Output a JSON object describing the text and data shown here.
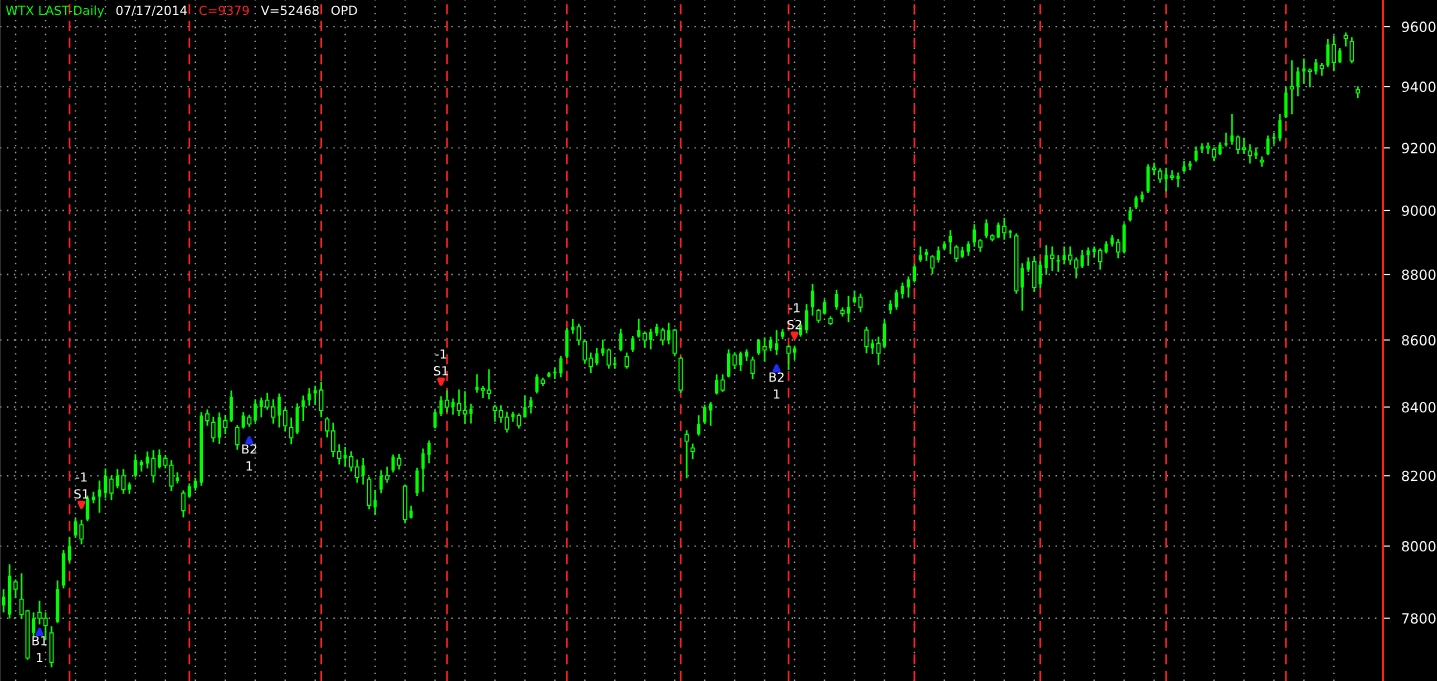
{
  "chart_data": {
    "type": "candlestick",
    "title": "WTX LAST-Daily",
    "annotations": [
      "07/17/2014",
      "C=9379",
      "V=52468",
      "OPD",
      {
        "text": "B1\n1",
        "y": 7790
      },
      {
        "text": "-1\nS1",
        "y": 8088
      },
      {
        "text": "B2\n1",
        "y": 8332
      },
      {
        "text": "-1\nS1",
        "y": 8445
      },
      {
        "text": "B2\n1",
        "y": 8545
      },
      {
        "text": "-1\nS2",
        "y": 8583
      }
    ],
    "categories": [
      null,
      null,
      null,
      null,
      null,
      null,
      null,
      null,
      null,
      null,
      null,
      null,
      null,
      null,
      null,
      null,
      null,
      null,
      null,
      null,
      null,
      null,
      null,
      null,
      null,
      null,
      null,
      null,
      null,
      null,
      null,
      null,
      null,
      null,
      null,
      null,
      null,
      null,
      null,
      null,
      null,
      null,
      null,
      null,
      null,
      null,
      null,
      null,
      null,
      null,
      null,
      null,
      null,
      null,
      null,
      null,
      null,
      null,
      null,
      null,
      null,
      null,
      null,
      null,
      null,
      null,
      null,
      null,
      null,
      null,
      null,
      null,
      null,
      null,
      null,
      null,
      null,
      null,
      null,
      null,
      null,
      null,
      null,
      null,
      null,
      null,
      null,
      null,
      null,
      null,
      null,
      null,
      null,
      null,
      null,
      null,
      null,
      null,
      null,
      null,
      null,
      null,
      null,
      null,
      null,
      null,
      null,
      null,
      null,
      null,
      null,
      null,
      null,
      null,
      null,
      null,
      null,
      null,
      null,
      null,
      null,
      null,
      null,
      null,
      null,
      null,
      null,
      null,
      null,
      null,
      null,
      null,
      null,
      null,
      null,
      null,
      null,
      null,
      null,
      null,
      null,
      null,
      null,
      null,
      null,
      null,
      null,
      null,
      null,
      null,
      null,
      null,
      null,
      null,
      null,
      null,
      null,
      null,
      null,
      null,
      null,
      null,
      null,
      null,
      null,
      null,
      null,
      null,
      null,
      null,
      null,
      null,
      null,
      null,
      null,
      null,
      null,
      null,
      null,
      null,
      null,
      null,
      null,
      null,
      null,
      null,
      null,
      null,
      null,
      null,
      null,
      null,
      null,
      null,
      null,
      null,
      null,
      null,
      null,
      null,
      null,
      null,
      null,
      null,
      null,
      null,
      null,
      null,
      null,
      null,
      null,
      null,
      null,
      null,
      null,
      null,
      null,
      null,
      null,
      null,
      null,
      null,
      null,
      null,
      null,
      null,
      null
    ],
    "color": "#00ff00",
    "ohlc": [
      [
        7835,
        7880,
        7816,
        7859
      ],
      [
        7810,
        7949,
        7799,
        7917
      ],
      [
        7900,
        7907,
        7855,
        7880
      ],
      [
        7852,
        7924,
        7799,
        7810
      ],
      [
        7820,
        7823,
        7687,
        7692
      ],
      [
        7760,
        7816,
        7750,
        7800
      ],
      [
        7816,
        7848,
        7783,
        7800
      ],
      [
        7800,
        7816,
        7740,
        7780
      ],
      [
        7760,
        7778,
        7667,
        7680
      ],
      [
        7790,
        7904,
        7787,
        7880
      ],
      [
        7890,
        7989,
        7882,
        7980
      ],
      [
        7960,
        8026,
        7954,
        8000
      ],
      [
        8030,
        8081,
        8023,
        8070
      ],
      [
        8060,
        8074,
        8005,
        8020
      ],
      [
        8075,
        8143,
        8070,
        8135
      ],
      [
        8130,
        8154,
        8121,
        8140
      ],
      [
        8140,
        8186,
        8094,
        8160
      ],
      [
        8150,
        8221,
        8135,
        8200
      ],
      [
        8190,
        8200,
        8130,
        8150
      ],
      [
        8170,
        8219,
        8164,
        8200
      ],
      [
        8200,
        8219,
        8148,
        8160
      ],
      [
        8160,
        8181,
        8148,
        8175
      ],
      [
        8200,
        8262,
        8195,
        8245
      ],
      [
        8230,
        8245,
        8212,
        8240
      ],
      [
        8235,
        8270,
        8221,
        8255
      ],
      [
        8250,
        8274,
        8180,
        8200
      ],
      [
        8225,
        8276,
        8221,
        8260
      ],
      [
        8250,
        8260,
        8221,
        8230
      ],
      [
        8230,
        8245,
        8156,
        8170
      ],
      [
        8185,
        8210,
        8178,
        8195
      ],
      [
        8150,
        8158,
        8081,
        8100
      ],
      [
        8140,
        8178,
        8137,
        8170
      ],
      [
        8165,
        8194,
        8157,
        8185
      ],
      [
        8180,
        8385,
        8171,
        8375
      ],
      [
        8380,
        8393,
        8345,
        8360
      ],
      [
        8355,
        8371,
        8297,
        8310
      ],
      [
        8310,
        8384,
        8292,
        8370
      ],
      [
        8360,
        8377,
        8321,
        8340
      ],
      [
        8360,
        8449,
        8356,
        8430
      ],
      [
        8340,
        8347,
        8275,
        8290
      ],
      [
        8340,
        8385,
        8337,
        8375
      ],
      [
        8370,
        8377,
        8342,
        8350
      ],
      [
        8360,
        8423,
        8354,
        8410
      ],
      [
        8400,
        8428,
        8370,
        8420
      ],
      [
        8420,
        8442,
        8392,
        8400
      ],
      [
        8400,
        8423,
        8351,
        8370
      ],
      [
        8375,
        8440,
        8340,
        8430
      ],
      [
        8390,
        8399,
        8328,
        8345
      ],
      [
        8340,
        8369,
        8291,
        8310
      ],
      [
        8325,
        8411,
        8321,
        8400
      ],
      [
        8400,
        8434,
        8359,
        8420
      ],
      [
        8420,
        8456,
        8404,
        8440
      ],
      [
        8440,
        8463,
        8406,
        8450
      ],
      [
        8450,
        8475,
        8370,
        8390
      ],
      [
        8365,
        8370,
        8311,
        8330
      ],
      [
        8330,
        8354,
        8254,
        8270
      ],
      [
        8270,
        8291,
        8232,
        8250
      ],
      [
        8250,
        8283,
        8226,
        8260
      ],
      [
        8255,
        8271,
        8212,
        8225
      ],
      [
        8225,
        8247,
        8180,
        8195
      ],
      [
        8200,
        8251,
        8175,
        8230
      ],
      [
        8190,
        8196,
        8104,
        8115
      ],
      [
        8110,
        8159,
        8088,
        8130
      ],
      [
        8160,
        8216,
        8150,
        8200
      ],
      [
        8200,
        8226,
        8180,
        8190
      ],
      [
        8215,
        8261,
        8209,
        8255
      ],
      [
        8250,
        8263,
        8218,
        8230
      ],
      [
        8170,
        8175,
        8064,
        8075
      ],
      [
        8080,
        8114,
        8078,
        8100
      ],
      [
        8150,
        8223,
        8142,
        8215
      ],
      [
        8220,
        8279,
        8154,
        8265
      ],
      [
        8260,
        8302,
        8236,
        8295
      ],
      [
        8340,
        8392,
        8337,
        8385
      ],
      [
        8380,
        8432,
        8374,
        8420
      ],
      [
        8420,
        8450,
        8385,
        8400
      ],
      [
        8400,
        8425,
        8377,
        8415
      ],
      [
        8410,
        8452,
        8374,
        8390
      ],
      [
        8390,
        8447,
        8352,
        8380
      ],
      [
        8380,
        8410,
        8352,
        8395
      ],
      [
        8450,
        8497,
        8442,
        8460
      ],
      [
        8455,
        8462,
        8427,
        8450
      ],
      [
        8450,
        8512,
        8423,
        8440
      ],
      [
        8400,
        8407,
        8357,
        8390
      ],
      [
        8390,
        8405,
        8354,
        8370
      ],
      [
        8370,
        8386,
        8325,
        8335
      ],
      [
        8370,
        8386,
        8357,
        8380
      ],
      [
        8375,
        8381,
        8337,
        8345
      ],
      [
        8370,
        8433,
        8369,
        8400
      ],
      [
        8400,
        8430,
        8381,
        8420
      ],
      [
        8445,
        8497,
        8440,
        8490
      ],
      [
        8480,
        8487,
        8462,
        8470
      ],
      [
        8490,
        8504,
        8488,
        8500
      ],
      [
        8500,
        8516,
        8483,
        8505
      ],
      [
        8500,
        8552,
        8488,
        8545
      ],
      [
        8550,
        8636,
        8546,
        8630
      ],
      [
        8630,
        8664,
        8619,
        8640
      ],
      [
        8640,
        8649,
        8584,
        8600
      ],
      [
        8595,
        8599,
        8529,
        8540
      ],
      [
        8545,
        8562,
        8501,
        8520
      ],
      [
        8530,
        8576,
        8524,
        8560
      ],
      [
        8560,
        8601,
        8552,
        8575
      ],
      [
        8570,
        8574,
        8514,
        8525
      ],
      [
        8525,
        8549,
        8514,
        8530
      ],
      [
        8570,
        8634,
        8566,
        8620
      ],
      [
        8550,
        8562,
        8514,
        8520
      ],
      [
        8570,
        8612,
        8564,
        8605
      ],
      [
        8610,
        8664,
        8607,
        8630
      ],
      [
        8620,
        8626,
        8577,
        8600
      ],
      [
        8600,
        8634,
        8572,
        8625
      ],
      [
        8620,
        8649,
        8612,
        8640
      ],
      [
        8630,
        8637,
        8584,
        8600
      ],
      [
        8600,
        8652,
        8587,
        8630
      ],
      [
        8630,
        8633,
        8551,
        8560
      ],
      [
        8545,
        8550,
        8442,
        8450
      ],
      [
        8320,
        8332,
        8193,
        8300
      ],
      [
        8280,
        8293,
        8248,
        8270
      ],
      [
        8320,
        8376,
        8316,
        8350
      ],
      [
        8355,
        8407,
        8350,
        8400
      ],
      [
        8390,
        8415,
        8345,
        8410
      ],
      [
        8440,
        8497,
        8437,
        8480
      ],
      [
        8480,
        8497,
        8445,
        8450
      ],
      [
        8490,
        8572,
        8488,
        8560
      ],
      [
        8555,
        8563,
        8513,
        8525
      ],
      [
        8525,
        8565,
        8507,
        8560
      ],
      [
        8550,
        8572,
        8537,
        8565
      ],
      [
        8540,
        8550,
        8483,
        8500
      ],
      [
        8560,
        8603,
        8555,
        8600
      ],
      [
        8580,
        8608,
        8535,
        8570
      ],
      [
        8575,
        8610,
        8567,
        8600
      ],
      [
        8570,
        8630,
        8555,
        8590
      ],
      [
        8610,
        8633,
        8603,
        8625
      ],
      [
        8580,
        8585,
        8510,
        8560
      ],
      [
        8562,
        8583,
        8540,
        8575
      ],
      [
        8615,
        8650,
        8610,
        8645
      ],
      [
        8630,
        8709,
        8620,
        8690
      ],
      [
        8700,
        8771,
        8674,
        8750
      ],
      [
        8690,
        8694,
        8652,
        8660
      ],
      [
        8680,
        8724,
        8677,
        8715
      ],
      [
        8665,
        8672,
        8645,
        8650
      ],
      [
        8700,
        8753,
        8692,
        8740
      ],
      [
        8690,
        8699,
        8671,
        8680
      ],
      [
        8680,
        8734,
        8654,
        8700
      ],
      [
        8715,
        8750,
        8711,
        8730
      ],
      [
        8730,
        8741,
        8684,
        8700
      ],
      [
        8630,
        8640,
        8560,
        8580
      ],
      [
        8575,
        8602,
        8558,
        8590
      ],
      [
        8590,
        8610,
        8525,
        8560
      ],
      [
        8580,
        8661,
        8575,
        8650
      ],
      [
        8690,
        8721,
        8679,
        8710
      ],
      [
        8700,
        8753,
        8692,
        8745
      ],
      [
        8740,
        8775,
        8726,
        8765
      ],
      [
        8760,
        8794,
        8729,
        8785
      ],
      [
        8780,
        8832,
        8775,
        8825
      ],
      [
        8845,
        8887,
        8839,
        8860
      ],
      [
        8860,
        8879,
        8842,
        8870
      ],
      [
        8855,
        8860,
        8801,
        8820
      ],
      [
        8845,
        8887,
        8837,
        8875
      ],
      [
        8880,
        8903,
        8877,
        8895
      ],
      [
        8900,
        8938,
        8863,
        8920
      ],
      [
        8885,
        8891,
        8839,
        8850
      ],
      [
        8855,
        8886,
        8851,
        8875
      ],
      [
        8870,
        8903,
        8858,
        8895
      ],
      [
        8900,
        8957,
        8886,
        8940
      ],
      [
        8905,
        8910,
        8870,
        8885
      ],
      [
        8920,
        8972,
        8913,
        8960
      ],
      [
        8920,
        8925,
        8903,
        8910
      ],
      [
        8915,
        8962,
        8913,
        8955
      ],
      [
        8950,
        8977,
        8908,
        8930
      ],
      [
        8930,
        8939,
        8913,
        8935
      ],
      [
        8920,
        8928,
        8741,
        8750
      ],
      [
        8760,
        8835,
        8689,
        8820
      ],
      [
        8815,
        8853,
        8808,
        8840
      ],
      [
        8840,
        8855,
        8747,
        8760
      ],
      [
        8770,
        8842,
        8758,
        8830
      ],
      [
        8820,
        8891,
        8799,
        8860
      ],
      [
        8860,
        8887,
        8811,
        8850
      ],
      [
        8840,
        8860,
        8808,
        8845
      ],
      [
        8845,
        8887,
        8832,
        8860
      ],
      [
        8860,
        8887,
        8830,
        8845
      ],
      [
        8845,
        8853,
        8788,
        8820
      ],
      [
        8825,
        8876,
        8820,
        8860
      ],
      [
        8860,
        8884,
        8827,
        8875
      ],
      [
        8870,
        8887,
        8853,
        8880
      ],
      [
        8875,
        8881,
        8815,
        8840
      ],
      [
        8870,
        8903,
        8865,
        8895
      ],
      [
        8895,
        8923,
        8887,
        8915
      ],
      [
        8900,
        8910,
        8850,
        8870
      ],
      [
        8870,
        8960,
        8865,
        8955
      ],
      [
        8970,
        9011,
        8965,
        9000
      ],
      [
        9010,
        9047,
        9005,
        9040
      ],
      [
        9035,
        9060,
        9026,
        9050
      ],
      [
        9060,
        9147,
        9055,
        9140
      ],
      [
        9135,
        9152,
        9112,
        9130
      ],
      [
        9125,
        9134,
        9088,
        9100
      ],
      [
        9100,
        9136,
        9060,
        9115
      ],
      [
        9110,
        9128,
        9096,
        9105
      ],
      [
        9100,
        9121,
        9074,
        9110
      ],
      [
        9125,
        9158,
        9121,
        9140
      ],
      [
        9140,
        9158,
        9128,
        9150
      ],
      [
        9160,
        9204,
        9155,
        9190
      ],
      [
        9195,
        9215,
        9183,
        9205
      ],
      [
        9205,
        9217,
        9180,
        9200
      ],
      [
        9195,
        9202,
        9157,
        9170
      ],
      [
        9180,
        9218,
        9177,
        9210
      ],
      [
        9210,
        9249,
        9204,
        9215
      ],
      [
        9220,
        9310,
        9210,
        9240
      ],
      [
        9235,
        9240,
        9180,
        9195
      ],
      [
        9200,
        9233,
        9180,
        9195
      ],
      [
        9190,
        9212,
        9150,
        9175
      ],
      [
        9175,
        9201,
        9164,
        9185
      ],
      [
        9160,
        9172,
        9139,
        9155
      ],
      [
        9180,
        9240,
        9177,
        9230
      ],
      [
        9230,
        9248,
        9210,
        9235
      ],
      [
        9230,
        9310,
        9221,
        9290
      ],
      [
        9300,
        9400,
        9297,
        9380
      ],
      [
        9400,
        9487,
        9309,
        9392
      ],
      [
        9400,
        9464,
        9368,
        9450
      ],
      [
        9450,
        9493,
        9409,
        9460
      ],
      [
        9455,
        9460,
        9398,
        9450
      ],
      [
        9450,
        9491,
        9440,
        9480
      ],
      [
        9470,
        9478,
        9436,
        9460
      ],
      [
        9470,
        9558,
        9465,
        9540
      ],
      [
        9540,
        9570,
        9451,
        9480
      ],
      [
        9480,
        9528,
        9479,
        9520
      ],
      [
        9570,
        9580,
        9533,
        9560
      ],
      [
        9550,
        9564,
        9477,
        9485
      ],
      [
        9390,
        9401,
        9362,
        9379
      ]
    ],
    "log": true,
    "ylim": [
      7630,
      9690
    ],
    "yticks": [
      7800,
      8000,
      8200,
      8400,
      8600,
      8800,
      9000,
      9200,
      9400,
      9600
    ],
    "grid": true
  }
}
